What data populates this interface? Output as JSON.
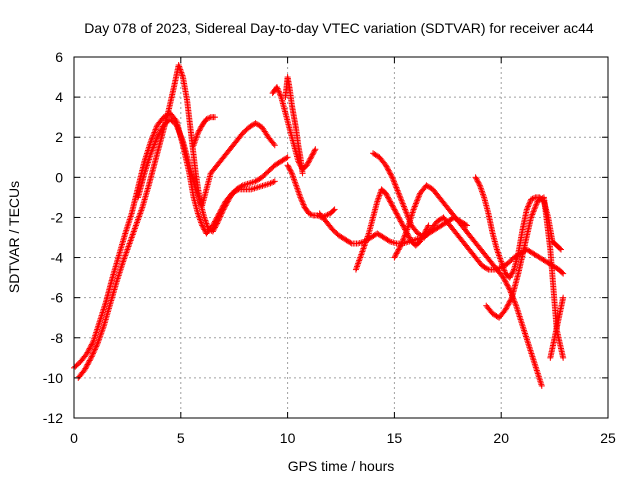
{
  "chart_data": {
    "type": "scatter",
    "title": "Day 078 of 2023, Sidereal Day-to-day VTEC variation (SDTVAR) for receiver ac44",
    "xlabel": "GPS time / hours",
    "ylabel": "SDTVAR / TECUs",
    "xlim": [
      0,
      25
    ],
    "ylim": [
      -12,
      6
    ],
    "xticks": [
      "0",
      "5",
      "10",
      "15",
      "20",
      "25"
    ],
    "yticks": [
      "-12",
      "-10",
      "-8",
      "-6",
      "-4",
      "-2",
      "0",
      "2",
      "4",
      "6"
    ],
    "grid": true,
    "marker": "+",
    "color": "#ff0000",
    "series": [
      {
        "name": "trace-1",
        "x": [
          0.0,
          0.3,
          0.6,
          0.9,
          1.2,
          1.5,
          1.8,
          2.1,
          2.4,
          2.7,
          3.0,
          3.3,
          3.6,
          3.9,
          4.2,
          4.5,
          4.8,
          5.1,
          5.4,
          5.6,
          5.8,
          6.0,
          6.2,
          6.5,
          6.8,
          7.1,
          7.4,
          7.7,
          8.0,
          8.3,
          8.6,
          8.9,
          9.2,
          9.4
        ],
        "y": [
          -9.5,
          -9.2,
          -8.8,
          -8.2,
          -7.2,
          -6.2,
          -5.0,
          -3.9,
          -2.8,
          -1.8,
          -0.5,
          0.8,
          1.8,
          2.6,
          3.0,
          3.2,
          2.8,
          1.6,
          0.2,
          -1.0,
          -1.8,
          -2.4,
          -2.8,
          -2.4,
          -1.8,
          -1.2,
          -0.8,
          -0.6,
          -0.6,
          -0.6,
          -0.5,
          -0.4,
          -0.3,
          -0.2
        ]
      },
      {
        "name": "trace-2",
        "x": [
          0.2,
          0.5,
          0.8,
          1.1,
          1.4,
          1.7,
          2.0,
          2.3,
          2.6,
          2.9,
          3.2,
          3.5,
          3.8,
          4.1,
          4.4,
          4.7,
          4.9,
          5.1,
          5.3,
          5.5,
          5.7,
          5.9,
          6.1,
          6.3,
          6.5,
          6.7,
          7.0,
          7.3,
          7.6,
          7.9,
          8.2,
          8.5,
          8.8,
          9.1,
          9.4,
          9.7,
          10.0
        ],
        "y": [
          -10.0,
          -9.6,
          -9.0,
          -8.3,
          -7.4,
          -6.3,
          -5.2,
          -4.2,
          -3.3,
          -2.4,
          -1.5,
          -0.4,
          0.8,
          2.0,
          3.2,
          4.6,
          5.6,
          5.0,
          3.8,
          2.0,
          0.2,
          -1.2,
          -2.0,
          -2.6,
          -2.7,
          -2.3,
          -1.6,
          -1.0,
          -0.6,
          -0.4,
          -0.3,
          -0.2,
          0.0,
          0.3,
          0.6,
          0.8,
          1.0
        ]
      },
      {
        "name": "trace-3",
        "x": [
          3.0,
          3.3,
          3.6,
          3.9,
          4.2,
          4.5,
          4.8,
          5.1,
          5.4,
          5.7,
          6.0,
          6.2,
          6.4,
          6.7,
          7.0,
          7.3,
          7.6,
          7.9,
          8.2,
          8.5,
          8.8,
          9.1,
          9.4
        ],
        "y": [
          -1.0,
          0.2,
          1.2,
          2.0,
          2.6,
          2.9,
          2.6,
          1.8,
          0.6,
          -0.6,
          -1.4,
          -0.6,
          0.2,
          0.6,
          1.0,
          1.4,
          1.8,
          2.2,
          2.5,
          2.7,
          2.5,
          2.0,
          1.6
        ]
      },
      {
        "name": "trace-4",
        "x": [
          5.6,
          5.8,
          6.0,
          6.2,
          6.4,
          6.6
        ],
        "y": [
          1.6,
          2.2,
          2.6,
          2.9,
          3.0,
          3.0
        ]
      },
      {
        "name": "trace-5",
        "x": [
          9.3,
          9.5,
          9.7,
          9.9,
          10.1,
          10.3,
          10.5,
          10.7,
          10.9,
          11.1,
          11.3
        ],
        "y": [
          4.2,
          4.5,
          4.0,
          3.2,
          2.4,
          1.6,
          0.8,
          0.4,
          0.6,
          1.0,
          1.4
        ]
      },
      {
        "name": "trace-6",
        "x": [
          9.9,
          10.0,
          10.1,
          10.2,
          10.3,
          10.4,
          10.5,
          10.6,
          10.7
        ],
        "y": [
          4.0,
          5.0,
          4.4,
          3.6,
          3.0,
          2.4,
          1.6,
          1.0,
          0.2
        ]
      },
      {
        "name": "trace-7",
        "x": [
          10.0,
          10.2,
          10.4,
          10.6,
          10.8,
          11.0,
          11.2,
          11.4,
          11.6,
          11.8,
          12.0,
          12.2
        ],
        "y": [
          0.6,
          0.2,
          -0.4,
          -1.0,
          -1.5,
          -1.8,
          -1.9,
          -1.9,
          -2.0,
          -1.9,
          -1.8,
          -1.6
        ]
      },
      {
        "name": "trace-8",
        "x": [
          11.5,
          11.8,
          12.1,
          12.4,
          12.7,
          13.0,
          13.3,
          13.6,
          13.9,
          14.2,
          14.5,
          14.8,
          15.1,
          15.4,
          15.7,
          16.0,
          16.3,
          16.6,
          16.9,
          17.2,
          17.5,
          17.8,
          18.1,
          18.4
        ],
        "y": [
          -1.8,
          -2.2,
          -2.6,
          -2.9,
          -3.1,
          -3.3,
          -3.3,
          -3.2,
          -3.0,
          -2.8,
          -3.0,
          -3.2,
          -3.3,
          -3.3,
          -3.2,
          -3.1,
          -3.0,
          -2.8,
          -2.6,
          -2.4,
          -2.2,
          -2.0,
          -2.2,
          -2.4
        ]
      },
      {
        "name": "trace-9",
        "x": [
          13.2,
          13.4,
          13.6,
          13.8,
          14.0,
          14.2,
          14.4,
          14.6,
          14.8,
          15.0,
          15.2,
          15.4,
          15.6,
          15.8,
          16.0,
          16.2,
          16.4,
          16.6
        ],
        "y": [
          -4.6,
          -4.0,
          -3.4,
          -2.8,
          -2.0,
          -1.2,
          -0.6,
          -0.8,
          -1.2,
          -1.6,
          -2.0,
          -2.4,
          -2.8,
          -3.2,
          -3.4,
          -3.2,
          -2.8,
          -2.4
        ]
      },
      {
        "name": "trace-10",
        "x": [
          14.0,
          14.3,
          14.6,
          14.9,
          15.2,
          15.5,
          15.8,
          16.1,
          16.4,
          16.7,
          17.0,
          17.3,
          17.6,
          17.9,
          18.2,
          18.5,
          18.8,
          19.1,
          19.4,
          19.7,
          20.0,
          20.3,
          20.6,
          20.9,
          21.2,
          21.5,
          21.8,
          22.1,
          22.4,
          22.7,
          22.9
        ],
        "y": [
          1.2,
          1.0,
          0.6,
          0.0,
          -0.8,
          -1.6,
          -2.4,
          -2.8,
          -3.0,
          -2.6,
          -2.2,
          -2.0,
          -2.4,
          -2.8,
          -3.2,
          -3.6,
          -4.0,
          -4.4,
          -4.6,
          -4.6,
          -4.5,
          -4.3,
          -4.0,
          -3.8,
          -3.6,
          -3.8,
          -4.0,
          -4.2,
          -4.4,
          -4.6,
          -4.8
        ]
      },
      {
        "name": "trace-11",
        "x": [
          15.0,
          15.3,
          15.6,
          15.9,
          16.2,
          16.5,
          16.8,
          17.1,
          17.4,
          17.7,
          18.0,
          18.3,
          18.6,
          18.9,
          19.2,
          19.5,
          19.8,
          20.1,
          20.4,
          20.7,
          21.0,
          21.3,
          21.6,
          21.9
        ],
        "y": [
          -4.0,
          -3.4,
          -2.6,
          -1.6,
          -0.8,
          -0.4,
          -0.6,
          -1.0,
          -1.4,
          -1.8,
          -2.2,
          -2.6,
          -3.0,
          -3.4,
          -3.8,
          -4.2,
          -4.6,
          -5.0,
          -5.6,
          -6.4,
          -7.4,
          -8.4,
          -9.4,
          -10.4
        ]
      },
      {
        "name": "trace-12",
        "x": [
          18.8,
          19.0,
          19.2,
          19.4,
          19.6,
          19.8,
          20.0,
          20.2,
          20.4,
          20.6,
          20.8,
          21.0,
          21.2,
          21.4,
          21.6,
          21.8,
          22.0,
          22.2,
          22.4,
          22.6,
          22.8
        ],
        "y": [
          0.0,
          -0.4,
          -1.0,
          -1.8,
          -2.8,
          -3.6,
          -4.2,
          -4.8,
          -5.0,
          -4.6,
          -3.8,
          -2.6,
          -1.6,
          -1.1,
          -1.0,
          -1.0,
          -1.2,
          -2.0,
          -3.2,
          -3.4,
          -3.6
        ]
      },
      {
        "name": "trace-13",
        "x": [
          19.3,
          19.6,
          19.9,
          20.2,
          20.5,
          20.8,
          21.1,
          21.4,
          21.7,
          22.0,
          22.3,
          22.6,
          22.9
        ],
        "y": [
          -6.4,
          -6.8,
          -7.0,
          -6.6,
          -6.0,
          -4.8,
          -3.4,
          -2.0,
          -1.2,
          -1.0,
          -3.6,
          -7.6,
          -9.0
        ]
      },
      {
        "name": "trace-14",
        "x": [
          22.3,
          22.5,
          22.7,
          22.9
        ],
        "y": [
          -9.0,
          -8.0,
          -7.0,
          -6.0
        ]
      }
    ]
  }
}
